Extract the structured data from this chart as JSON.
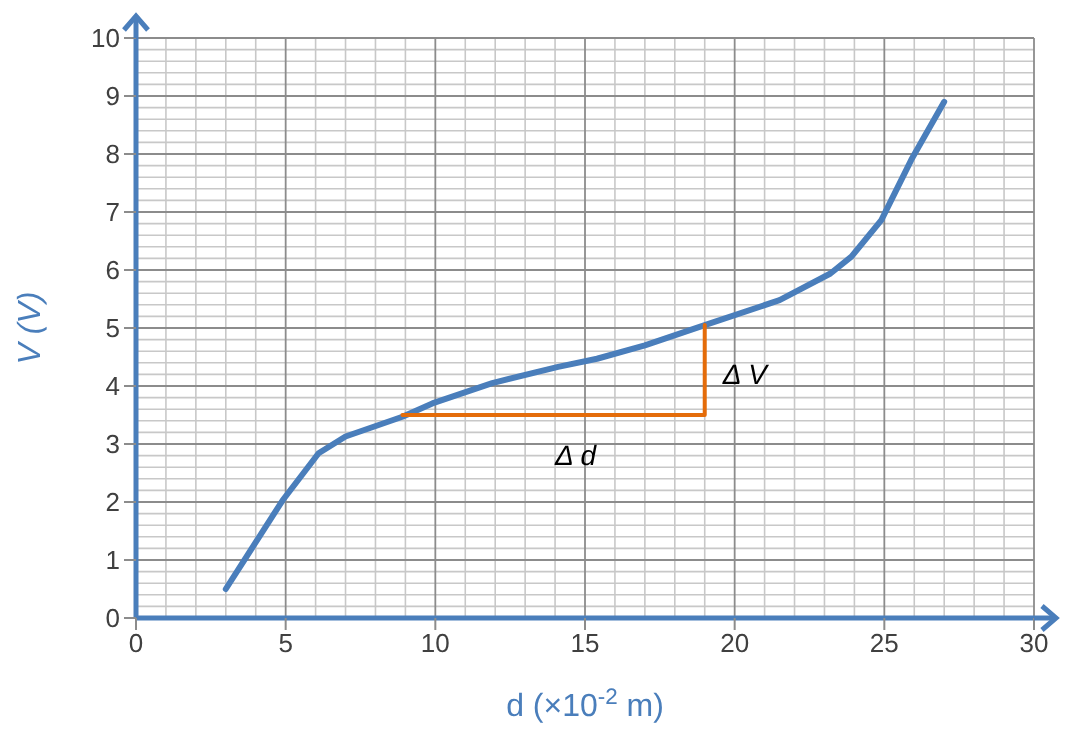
{
  "chart_data": {
    "type": "line",
    "xlabel": "d (×10$^{-2}$ m)",
    "ylabel": "V (V)",
    "xlim": [
      0,
      30
    ],
    "xticks": [
      0,
      5,
      10,
      15,
      20,
      25,
      30
    ],
    "ylim": [
      0,
      10
    ],
    "yticks": [
      0,
      1,
      2,
      3,
      4,
      5,
      6,
      7,
      8,
      9,
      10
    ],
    "grid": true,
    "marker": "none",
    "line_style": "solid",
    "series": [
      {
        "color": "#4a7ebb",
        "x": [
          3,
          4.9,
          6.1,
          7,
          8.9,
          9.9,
          11.9,
          14.1,
          15.4,
          17,
          19,
          21.5,
          23.2,
          23.9,
          24.9,
          25.9,
          27
        ],
        "values": [
          0.5,
          2.03,
          2.84,
          3.13,
          3.47,
          3.7,
          4.05,
          4.33,
          4.47,
          4.7,
          5.05,
          5.48,
          5.94,
          6.23,
          6.86,
          7.9,
          8.9
        ]
      },
      {
        "color": "#e46c0a",
        "x": [
          8.9,
          19,
          19
        ],
        "values": [
          3.5,
          3.5,
          5.05
        ]
      }
    ],
    "annotations": [
      {
        "text": "Δ d",
        "x": 13.4,
        "y": 3.5
      },
      {
        "text": "Δ V",
        "x": 19,
        "y": 4.9
      }
    ]
  }
}
